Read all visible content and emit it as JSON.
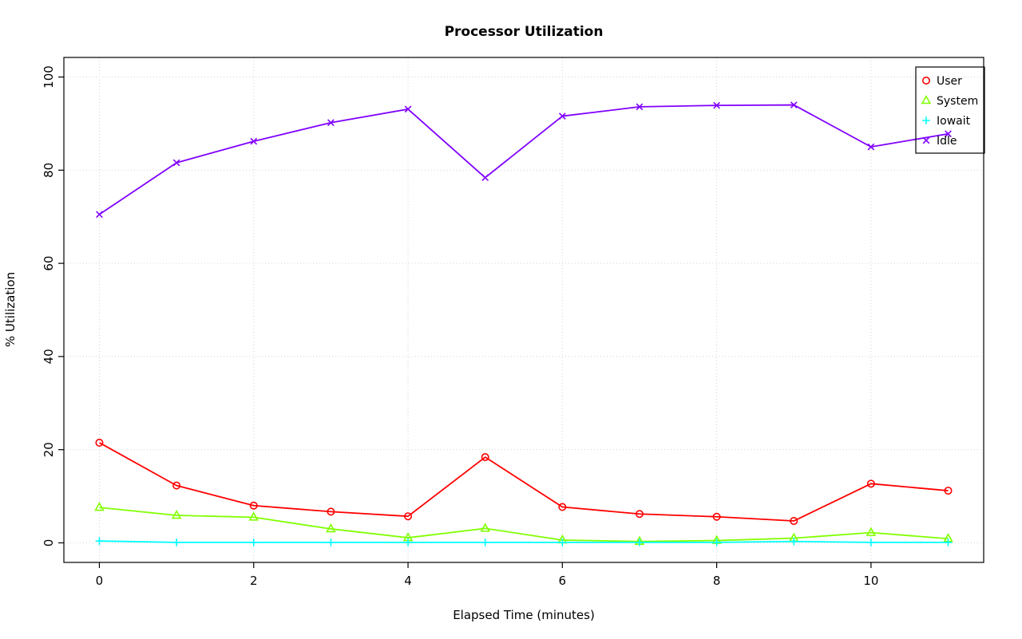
{
  "title": "Processor Utilization",
  "chart_data": {
    "type": "line",
    "title": "Processor Utilization",
    "xlabel": "Elapsed Time (minutes)",
    "ylabel": "% Utilization",
    "x": [
      0,
      1,
      2,
      3,
      4,
      5,
      6,
      7,
      8,
      9,
      10,
      11
    ],
    "xlim": [
      -0.46,
      11.46
    ],
    "ylim": [
      -4.2,
      104.2
    ],
    "x_ticks": [
      0,
      2,
      4,
      6,
      8,
      10
    ],
    "y_ticks": [
      0,
      20,
      40,
      60,
      80,
      100
    ],
    "grid": true,
    "grid_color": "#d3d3d3",
    "grid_style": "dotted",
    "legend_position": "topright",
    "series": [
      {
        "name": "User",
        "color": "#ff0000",
        "marker": "circle",
        "values": [
          21.5,
          12.3,
          8.0,
          6.7,
          5.7,
          18.4,
          7.7,
          6.2,
          5.6,
          4.7,
          12.7,
          11.2
        ]
      },
      {
        "name": "System",
        "color": "#80ff00",
        "marker": "triangle",
        "values": [
          7.6,
          5.9,
          5.5,
          3.0,
          1.1,
          3.1,
          0.6,
          0.3,
          0.5,
          1.0,
          2.2,
          0.9
        ]
      },
      {
        "name": "Iowait",
        "color": "#00ffff",
        "marker": "plus",
        "values": [
          0.4,
          0.1,
          0.1,
          0.1,
          0.1,
          0.1,
          0.1,
          0.1,
          0.1,
          0.3,
          0.1,
          0.1
        ]
      },
      {
        "name": "Idle",
        "color": "#8000ff",
        "marker": "x",
        "values": [
          70.5,
          81.6,
          86.2,
          90.2,
          93.1,
          78.4,
          91.6,
          93.6,
          93.9,
          94.0,
          85.0,
          87.8
        ]
      }
    ]
  }
}
